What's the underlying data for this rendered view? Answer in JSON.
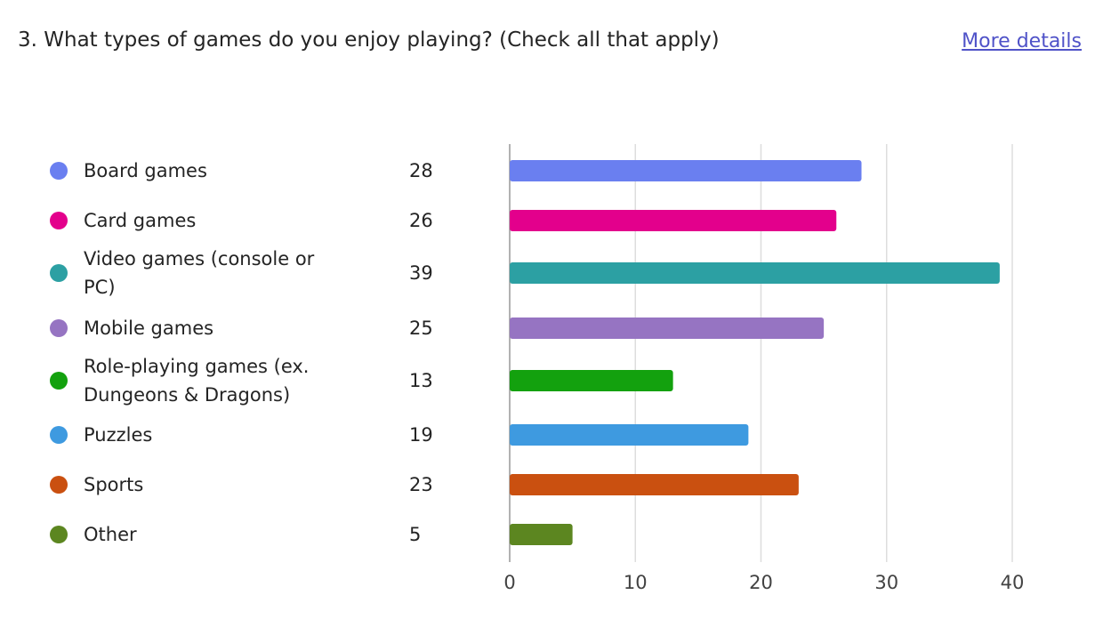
{
  "header": {
    "more_details": "More details"
  },
  "chart_data": {
    "type": "hbar",
    "title": "3. What types of games do you enjoy playing? (Check all that apply)",
    "categories": [
      "Board games",
      "Card games",
      "Video games (console or PC)",
      "Mobile games",
      "Role-playing games (ex. Dungeons & Dragons)",
      "Puzzles",
      "Sports",
      "Other"
    ],
    "values": [
      28,
      26,
      39,
      25,
      13,
      19,
      23,
      5
    ],
    "colors": [
      "#6a7ff0",
      "#e3008c",
      "#2ca0a3",
      "#9674c2",
      "#13a10e",
      "#3e9ae0",
      "#ca5010",
      "#5c8620"
    ],
    "xlim": [
      0,
      40
    ],
    "xticks": [
      0,
      10,
      20,
      30,
      40
    ],
    "grid": true
  }
}
